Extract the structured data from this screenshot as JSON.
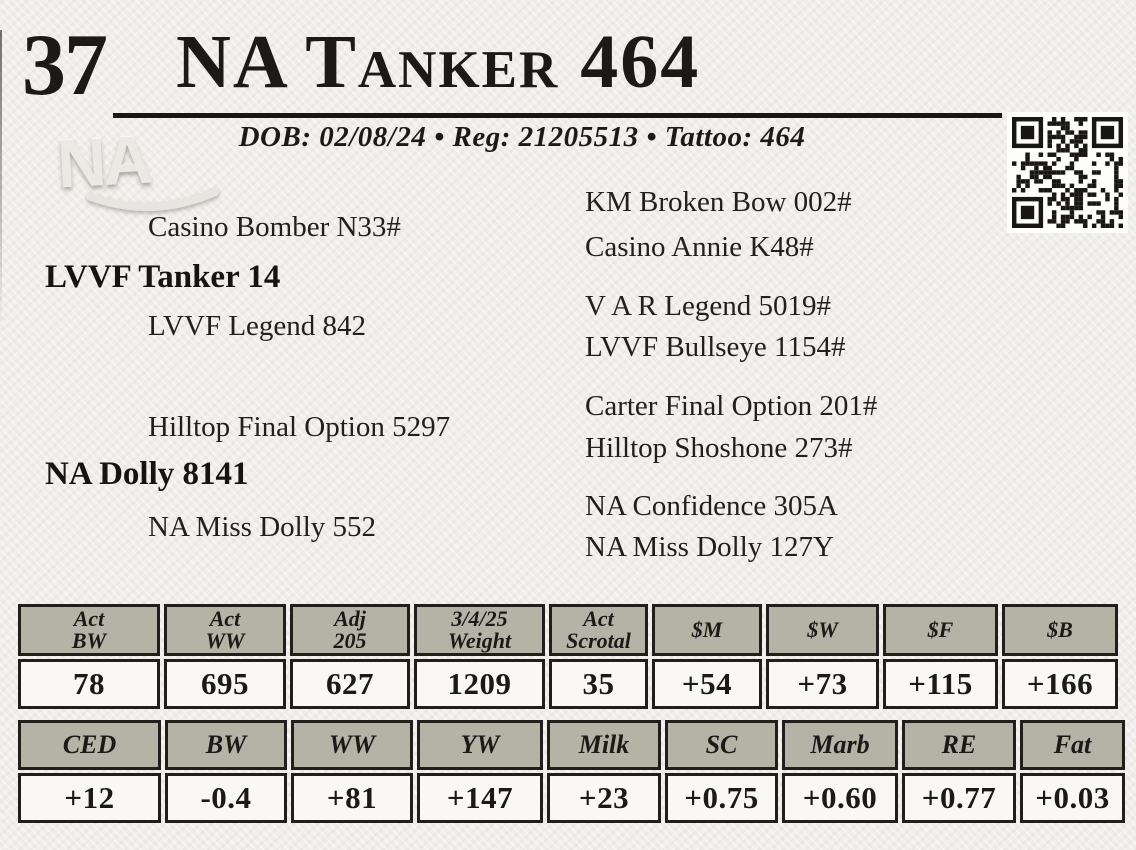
{
  "colors": {
    "paper": "#f0eeea",
    "table_header_bg": "#b5b2a6",
    "table_border": "#201f1b",
    "ink": "#1b1a17"
  },
  "header": {
    "lot_number": "37",
    "title": "NA Tanker 464",
    "info_line": "DOB: 02/08/24 • Reg: 21205513 • Tattoo: 464",
    "dob": "02/08/24",
    "reg": "21205513",
    "tattoo": "464",
    "watermark_text": "NA"
  },
  "icons": {
    "qr": "qr-code"
  },
  "pedigree": {
    "sire_sire": "Casino Bomber N33#",
    "sire": "LVVF Tanker 14",
    "sire_dam": "LVVF Legend 842",
    "dam_sire": "Hilltop Final Option 5297",
    "dam": "NA Dolly 8141",
    "dam_dam": "NA Miss Dolly 552",
    "great_grandparents": [
      "KM Broken Bow 002#",
      "Casino Annie K48#",
      "V A R Legend 5019#",
      "LVVF Bullseye 1154#",
      "Carter Final Option 201#",
      "Hilltop Shoshone 273#",
      "NA Confidence 305A",
      "NA Miss Dolly 127Y"
    ]
  },
  "performance_table": {
    "headers": [
      "Act\nBW",
      "Act\nWW",
      "Adj\n205",
      "3/4/25\nWeight",
      "Act\nScrotal",
      "$M",
      "$W",
      "$F",
      "$B"
    ],
    "values": [
      "78",
      "695",
      "627",
      "1209",
      "35",
      "+54",
      "+73",
      "+115",
      "+166"
    ]
  },
  "epd_table": {
    "headers": [
      "CED",
      "BW",
      "WW",
      "YW",
      "Milk",
      "SC",
      "Marb",
      "RE",
      "Fat"
    ],
    "values": [
      "+12",
      "-0.4",
      "+81",
      "+147",
      "+23",
      "+0.75",
      "+0.60",
      "+0.77",
      "+0.03"
    ]
  }
}
